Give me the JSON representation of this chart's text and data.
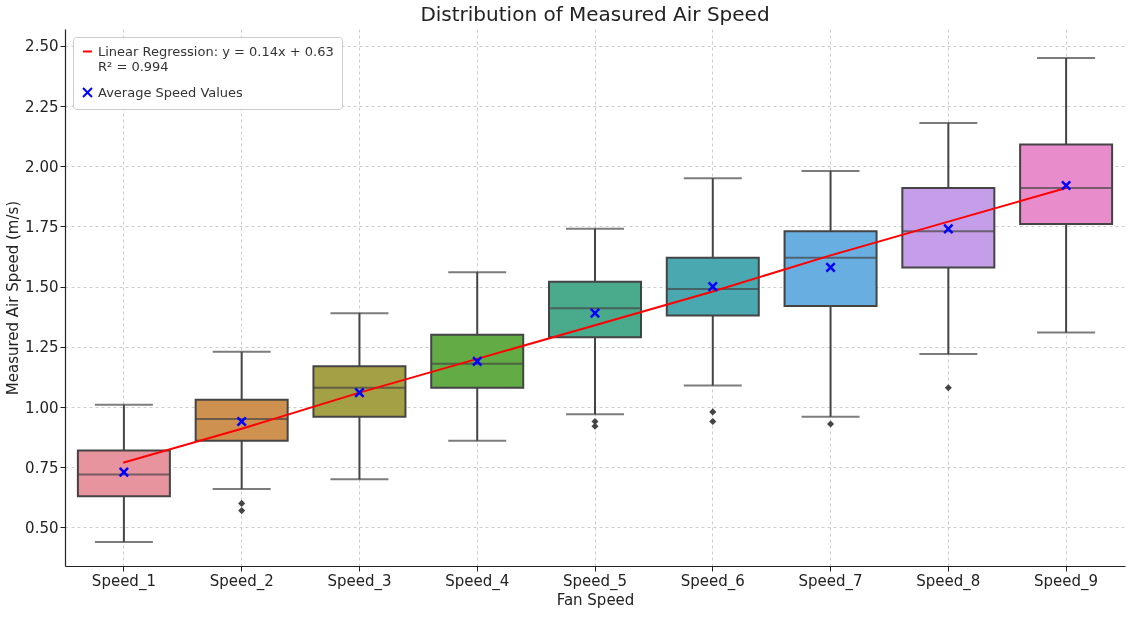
{
  "chart_data": {
    "type": "box",
    "title": "Distribution of Measured Air Speed",
    "xlabel": "Fan Speed",
    "ylabel": "Measured Air Speed (m/s)",
    "categories": [
      "Speed_1",
      "Speed_2",
      "Speed_3",
      "Speed_4",
      "Speed_5",
      "Speed_6",
      "Speed_7",
      "Speed_8",
      "Speed_9"
    ],
    "colors": [
      "#e8949f",
      "#cf9150",
      "#a3a045",
      "#62ab45",
      "#4aab8c",
      "#4aa8b0",
      "#68aee0",
      "#c49ee8",
      "#e98ccb"
    ],
    "boxes": [
      {
        "low": 0.44,
        "q1": 0.63,
        "median": 0.72,
        "q3": 0.82,
        "high": 1.01
      },
      {
        "low": 0.66,
        "q1": 0.86,
        "median": 0.95,
        "q3": 1.03,
        "high": 1.23,
        "outliers": [
          0.6,
          0.57
        ]
      },
      {
        "low": 0.7,
        "q1": 0.96,
        "median": 1.08,
        "q3": 1.17,
        "high": 1.39
      },
      {
        "low": 0.86,
        "q1": 1.08,
        "median": 1.18,
        "q3": 1.3,
        "high": 1.56
      },
      {
        "low": 0.97,
        "q1": 1.29,
        "median": 1.41,
        "q3": 1.52,
        "high": 1.74,
        "outliers": [
          0.94,
          0.92
        ]
      },
      {
        "low": 1.09,
        "q1": 1.38,
        "median": 1.49,
        "q3": 1.62,
        "high": 1.95,
        "outliers": [
          0.98,
          0.94
        ]
      },
      {
        "low": 0.96,
        "q1": 1.42,
        "median": 1.62,
        "q3": 1.73,
        "high": 1.98,
        "outliers": [
          0.93
        ]
      },
      {
        "low": 1.22,
        "q1": 1.58,
        "median": 1.73,
        "q3": 1.91,
        "high": 2.18,
        "outliers": [
          1.08
        ]
      },
      {
        "low": 1.31,
        "q1": 1.76,
        "median": 1.91,
        "q3": 2.09,
        "high": 2.45
      }
    ],
    "series": [
      {
        "type": "line",
        "name": "Linear Regression: y = 0.14x + 0.63\nR² = 0.994",
        "color": "#ff0000",
        "values": [
          0.77,
          0.91,
          1.06,
          1.2,
          1.34,
          1.48,
          1.63,
          1.77,
          1.91
        ]
      },
      {
        "type": "scatter",
        "name": "Average Speed Values",
        "color": "#0000ff",
        "marker": "cross",
        "values": [
          0.73,
          0.94,
          1.06,
          1.19,
          1.39,
          1.5,
          1.58,
          1.74,
          1.92
        ]
      }
    ],
    "ylim": [
      0.34,
      2.57
    ],
    "yticks": [
      {
        "value": 0.5,
        "label": "0.50"
      },
      {
        "value": 0.75,
        "label": "0.75"
      },
      {
        "value": 1.0,
        "label": "1.00"
      },
      {
        "value": 1.25,
        "label": "1.25"
      },
      {
        "value": 1.5,
        "label": "1.50"
      },
      {
        "value": 1.75,
        "label": "1.75"
      },
      {
        "value": 2.0,
        "label": "2.00"
      },
      {
        "value": 2.25,
        "label": "2.25"
      },
      {
        "value": 2.5,
        "label": "2.50"
      }
    ],
    "grid": true,
    "legend": "top left"
  }
}
